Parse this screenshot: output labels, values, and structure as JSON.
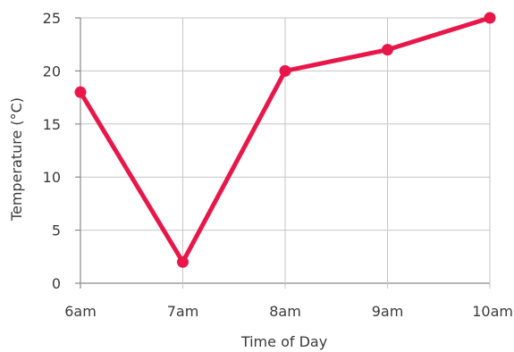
{
  "chart_data": {
    "type": "line",
    "categories": [
      "6am",
      "7am",
      "8am",
      "9am",
      "10am"
    ],
    "series": [
      {
        "values": [
          18,
          2,
          20,
          22,
          25
        ]
      }
    ],
    "xlabel": "Time of Day",
    "ylabel": "Temperature (°C)",
    "ylim": [
      0,
      25
    ],
    "yticks": [
      0,
      5,
      10,
      15,
      20,
      25
    ],
    "grid": true,
    "line_color": "#e8174a",
    "marker_color": "#e8174a"
  }
}
